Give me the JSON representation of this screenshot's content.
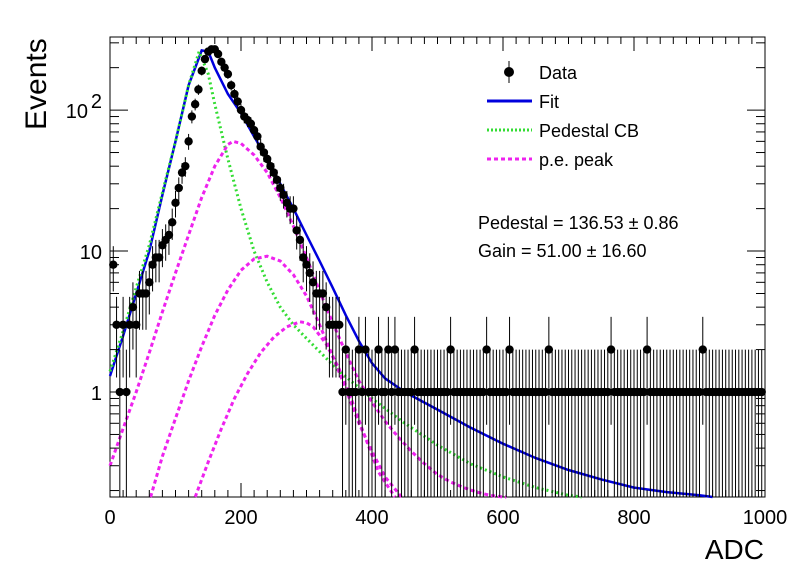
{
  "chart_data": {
    "type": "scatter",
    "xlabel": "ADC",
    "ylabel": "Events",
    "xlim": [
      0,
      1000
    ],
    "ylim": [
      0.18,
      330
    ],
    "yscale": "log",
    "grid": false,
    "legend_placement": "top-right",
    "x_ticks": [
      "0",
      "200",
      "400",
      "600",
      "800",
      "1000"
    ],
    "y_ticks": [
      {
        "value": 1,
        "label": "1"
      },
      {
        "value": 10,
        "label": "10"
      },
      {
        "value": 100,
        "label": "10",
        "sup": "2"
      }
    ],
    "legend": [
      {
        "label": "Data",
        "style": "marker",
        "color": "#000000"
      },
      {
        "label": "Fit",
        "style": "solid",
        "color": "#0000dd"
      },
      {
        "label": "Pedestal CB",
        "style": "dotted",
        "color": "#33dd33"
      },
      {
        "label": "p.e. peak",
        "style": "dashed",
        "color": "#ee22ee"
      }
    ],
    "annotations": [
      "Pedestal = 136.53 ± 0.86",
      "Gain = 51.00 ± 16.60"
    ],
    "parameters": {
      "pedestal": 136.53,
      "pedestal_err": 0.86,
      "gain": 51.0,
      "gain_err": 16.6
    },
    "colors": {
      "data": "#000000",
      "fit": "#0000dd",
      "pedestal": "#33dd33",
      "pe_peak": "#ee22ee"
    },
    "series": [
      {
        "name": "Data",
        "kind": "points",
        "x": [
          5,
          10,
          15,
          20,
          25,
          30,
          35,
          40,
          45,
          50,
          55,
          60,
          65,
          70,
          75,
          80,
          85,
          90,
          95,
          100,
          105,
          110,
          115,
          120,
          125,
          130,
          135,
          140,
          145,
          150,
          155,
          160,
          165,
          170,
          175,
          180,
          185,
          190,
          195,
          200,
          205,
          210,
          215,
          220,
          225,
          230,
          235,
          240,
          245,
          250,
          255,
          260,
          265,
          270,
          275,
          280,
          285,
          290,
          295,
          300,
          305,
          310,
          315,
          320,
          325,
          330,
          335,
          340,
          345,
          350,
          355,
          360,
          365,
          370,
          375,
          380,
          385,
          390,
          395,
          400,
          405,
          410,
          415,
          420,
          425,
          430,
          435,
          440,
          445,
          450,
          455,
          460,
          465,
          470,
          475,
          480,
          485,
          490,
          495,
          500,
          505,
          510,
          515,
          520,
          525,
          530,
          535,
          540,
          545,
          550,
          555,
          560,
          565,
          570,
          575,
          580,
          585,
          590,
          595,
          600,
          605,
          610,
          615,
          620,
          625,
          630,
          635,
          640,
          645,
          650,
          655,
          660,
          665,
          670,
          675,
          680,
          685,
          690,
          695,
          700,
          705,
          710,
          715,
          720,
          725,
          730,
          735,
          740,
          745,
          750,
          755,
          760,
          765,
          770,
          775,
          780,
          785,
          790,
          795,
          800,
          805,
          810,
          815,
          820,
          825,
          830,
          835,
          840,
          845,
          850,
          855,
          860,
          865,
          870,
          875,
          880,
          885,
          890,
          895,
          900,
          905,
          910,
          915,
          920,
          925,
          930,
          935,
          940,
          945,
          950,
          955,
          960,
          965,
          970,
          975,
          980,
          985,
          990,
          995
        ],
        "y": [
          8,
          3,
          1,
          3,
          1,
          3,
          4,
          3,
          5,
          5,
          5,
          6,
          8,
          9,
          9,
          11,
          12,
          13,
          16,
          22,
          28,
          36,
          40,
          60,
          90,
          110,
          140,
          190,
          230,
          260,
          270,
          270,
          250,
          220,
          200,
          180,
          150,
          130,
          115,
          100,
          90,
          85,
          80,
          72,
          65,
          55,
          50,
          45,
          40,
          36,
          32,
          28,
          25,
          22,
          20,
          20,
          14,
          12,
          9,
          8,
          7,
          6,
          5,
          5,
          5,
          4,
          3,
          3,
          3,
          3,
          1,
          2,
          1,
          1,
          1,
          2,
          1,
          2,
          1,
          1,
          1,
          2,
          1,
          1,
          2,
          1,
          2,
          1,
          1,
          1,
          1,
          1,
          2,
          1,
          1,
          1,
          1,
          1,
          1,
          1,
          1,
          1,
          1,
          2,
          1,
          1,
          1,
          1,
          1,
          1,
          1,
          1,
          1,
          1,
          2,
          1,
          1,
          1,
          1,
          1,
          1,
          2,
          1,
          1,
          1,
          1,
          1,
          1,
          1,
          1,
          1,
          1,
          1,
          2,
          1,
          1,
          1,
          1,
          1,
          1,
          1,
          1,
          1,
          1,
          1,
          1,
          1,
          1,
          1,
          1,
          1,
          1,
          2,
          1,
          1,
          1,
          1,
          1,
          1,
          1,
          1,
          1,
          1,
          2,
          1,
          1,
          1,
          1,
          1,
          1,
          1,
          1,
          1,
          1,
          1,
          1,
          1,
          1,
          1,
          1,
          2,
          1,
          1,
          1,
          1,
          1,
          1,
          1,
          1,
          1,
          1,
          1,
          1,
          1,
          1,
          1,
          1,
          1,
          1
        ]
      },
      {
        "name": "Fit",
        "kind": "line",
        "x": [
          0,
          20,
          40,
          60,
          80,
          100,
          120,
          140,
          150,
          160,
          180,
          200,
          220,
          240,
          260,
          280,
          300,
          320,
          340,
          360,
          380,
          400,
          420,
          450,
          500,
          550,
          600,
          650,
          700,
          750,
          800,
          850,
          900,
          920
        ],
        "y": [
          1.3,
          2.5,
          5,
          10,
          25,
          60,
          150,
          265,
          260,
          200,
          130,
          95,
          65,
          45,
          30,
          20,
          13,
          8.5,
          5.5,
          3.5,
          2.3,
          1.6,
          1.25,
          1.0,
          0.75,
          0.56,
          0.43,
          0.34,
          0.28,
          0.24,
          0.21,
          0.195,
          0.185,
          0.18
        ]
      },
      {
        "name": "Pedestal CB",
        "kind": "line",
        "x": [
          0,
          20,
          40,
          60,
          80,
          100,
          120,
          136,
          150,
          160,
          170,
          180,
          200,
          220,
          240,
          260,
          280,
          300,
          350,
          400,
          450,
          500,
          550,
          600,
          650,
          700,
          720
        ],
        "y": [
          1.4,
          2.7,
          5.5,
          11,
          26,
          60,
          150,
          260,
          180,
          110,
          70,
          45,
          20,
          10,
          6,
          4,
          3,
          2.4,
          1.4,
          0.9,
          0.6,
          0.42,
          0.31,
          0.25,
          0.21,
          0.185,
          0.18
        ]
      },
      {
        "name": "p.e. peak 1",
        "kind": "line",
        "x": [
          0,
          20,
          40,
          60,
          80,
          100,
          120,
          140,
          160,
          180,
          188,
          200,
          220,
          240,
          260,
          280,
          300,
          320,
          340,
          360,
          380,
          400,
          420,
          440,
          460,
          480,
          500,
          520,
          540,
          560,
          580,
          600,
          605
        ],
        "y": [
          0.3,
          0.55,
          1.0,
          1.9,
          3.7,
          7,
          13,
          24,
          40,
          57,
          60,
          58,
          48,
          36,
          24,
          15,
          9,
          5.2,
          3.1,
          1.9,
          1.2,
          0.85,
          0.62,
          0.48,
          0.38,
          0.31,
          0.26,
          0.23,
          0.21,
          0.195,
          0.185,
          0.18,
          0.18
        ]
      },
      {
        "name": "p.e. peak 2",
        "kind": "line",
        "x": [
          62,
          80,
          100,
          120,
          140,
          160,
          180,
          200,
          220,
          240,
          260,
          280,
          300,
          320,
          340,
          360,
          380,
          400,
          420,
          445
        ],
        "y": [
          0.18,
          0.35,
          0.65,
          1.2,
          2.1,
          3.5,
          5.3,
          7.3,
          8.8,
          9.2,
          8.5,
          6.8,
          4.8,
          3.0,
          1.8,
          1.05,
          0.6,
          0.38,
          0.25,
          0.18
        ]
      },
      {
        "name": "p.e. peak 3",
        "kind": "line",
        "x": [
          130,
          150,
          170,
          190,
          210,
          230,
          250,
          270,
          290,
          300,
          310,
          330,
          350,
          370,
          390,
          410,
          435
        ],
        "y": [
          0.18,
          0.32,
          0.55,
          0.9,
          1.35,
          1.9,
          2.45,
          2.9,
          3.15,
          3.1,
          2.9,
          2.2,
          1.45,
          0.85,
          0.47,
          0.27,
          0.18
        ]
      }
    ]
  }
}
